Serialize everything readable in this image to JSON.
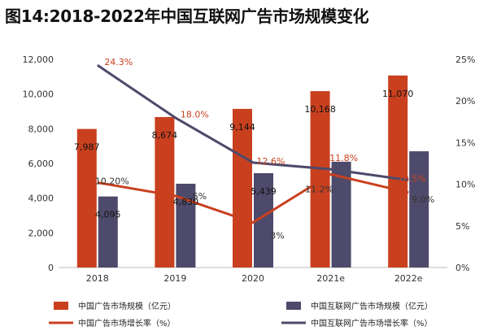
{
  "title": "图14:2018-2022年中国互联网广告市场规模变化",
  "chart_data": {
    "type": "bar",
    "title": "图14:2018-2022年中国互联网广告市场规模变化",
    "categories": [
      "2018",
      "2019",
      "2020",
      "2021e",
      "2022e"
    ],
    "ylim": [
      0,
      12000
    ],
    "y_ticks": [
      "0",
      "2,000",
      "4,000",
      "6,000",
      "8,000",
      "10,000",
      "12,000"
    ],
    "y2lim": [
      0,
      25
    ],
    "y2_ticks": [
      "0%",
      "5%",
      "10%",
      "15%",
      "20%",
      "25%"
    ],
    "grid": false,
    "legend_position": "bottom",
    "series": [
      {
        "name": "中国广告市场规模（亿元）",
        "type": "bar",
        "axis": "left",
        "color": "#C9401F",
        "values": [
          7987,
          8674,
          9144,
          10168,
          11070
        ],
        "labels": [
          "7,987",
          "8,674",
          "9,144",
          "10,168",
          "11,070"
        ]
      },
      {
        "name": "中国互联网广告市场规模（亿元）",
        "type": "bar",
        "axis": "left",
        "color": "#4E4A6B",
        "values": [
          4095,
          4830,
          5439,
          6100,
          6700
        ],
        "labels": [
          "4,095",
          "4,830",
          "5,439",
          "",
          ""
        ]
      },
      {
        "name": "中国广告市场增长率（%）",
        "type": "line",
        "axis": "right",
        "color": "#C9401F",
        "values": [
          10.2,
          8.6,
          5.4,
          11.2,
          9.0
        ],
        "labels": [
          "10.20%",
          "",
          "",
          "11.2%",
          "9.0%"
        ]
      },
      {
        "name": "中国互联网广告市场增长率（%）",
        "type": "line",
        "axis": "right",
        "color": "#4E4A6B",
        "values": [
          24.3,
          18.0,
          12.6,
          11.8,
          10.5
        ],
        "labels": [
          "24.3%",
          "18.0%",
          "12.6%",
          "11.8%",
          "10.5%"
        ]
      }
    ],
    "partial_labels": [
      "6%",
      "3%"
    ]
  }
}
